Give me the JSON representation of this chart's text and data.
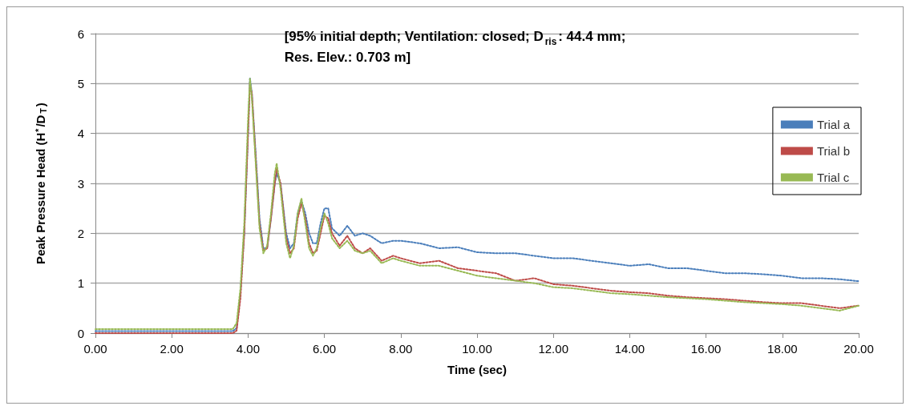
{
  "chart_data": {
    "type": "line",
    "title": "[95% initial depth; Ventilation: closed; D$_{ris}$: 44.4 mm;\nRes. Elev.: 0.703 m]",
    "xlabel": "Time (sec)",
    "ylabel": "Peak Pressure Head (H$^{*}$/D$_{T}$)",
    "x": [
      0,
      1,
      2,
      3,
      3.6,
      3.7,
      3.8,
      3.9,
      4.0,
      4.05,
      4.1,
      4.2,
      4.3,
      4.4,
      4.5,
      4.6,
      4.7,
      4.75,
      4.85,
      5.0,
      5.1,
      5.2,
      5.3,
      5.4,
      5.5,
      5.6,
      5.7,
      5.8,
      5.9,
      6.0,
      6.1,
      6.2,
      6.4,
      6.6,
      6.8,
      7.0,
      7.2,
      7.5,
      7.8,
      8,
      8.5,
      9,
      9.5,
      10,
      10.5,
      11,
      11.5,
      12,
      12.5,
      13,
      13.5,
      14,
      14.5,
      15,
      15.5,
      16,
      16.5,
      17,
      17.5,
      18,
      18.5,
      19,
      19.5,
      20
    ],
    "series": [
      {
        "name": "Trial a",
        "color": "#4a7ebb",
        "values": [
          0.04,
          0.04,
          0.04,
          0.04,
          0.04,
          0.1,
          0.8,
          2.0,
          4.0,
          5.1,
          4.8,
          3.6,
          2.3,
          1.7,
          1.7,
          2.3,
          3.0,
          3.2,
          3.0,
          2.0,
          1.7,
          1.8,
          2.4,
          2.65,
          2.4,
          2.0,
          1.8,
          1.8,
          2.2,
          2.5,
          2.5,
          2.1,
          1.95,
          2.15,
          1.95,
          2.0,
          1.95,
          1.8,
          1.85,
          1.85,
          1.8,
          1.7,
          1.72,
          1.62,
          1.6,
          1.6,
          1.55,
          1.5,
          1.5,
          1.45,
          1.4,
          1.35,
          1.38,
          1.3,
          1.3,
          1.25,
          1.2,
          1.2,
          1.18,
          1.15,
          1.1,
          1.1,
          1.08,
          1.04
        ]
      },
      {
        "name": "Trial b",
        "color": "#be4b48",
        "values": [
          0.0,
          0.0,
          0.0,
          0.0,
          0.0,
          0.05,
          0.7,
          2.0,
          4.0,
          5.0,
          4.8,
          3.5,
          2.2,
          1.65,
          1.7,
          2.3,
          3.0,
          3.3,
          3.0,
          1.9,
          1.6,
          1.7,
          2.3,
          2.6,
          2.3,
          1.8,
          1.6,
          1.65,
          2.0,
          2.35,
          2.3,
          2.0,
          1.75,
          1.95,
          1.7,
          1.6,
          1.7,
          1.45,
          1.55,
          1.5,
          1.4,
          1.45,
          1.3,
          1.25,
          1.2,
          1.05,
          1.1,
          0.98,
          0.95,
          0.9,
          0.85,
          0.82,
          0.8,
          0.75,
          0.72,
          0.7,
          0.68,
          0.65,
          0.62,
          0.6,
          0.6,
          0.55,
          0.5,
          0.55
        ]
      },
      {
        "name": "Trial c",
        "color": "#98b954",
        "values": [
          0.08,
          0.08,
          0.08,
          0.08,
          0.08,
          0.2,
          0.9,
          2.2,
          4.3,
          5.1,
          4.7,
          3.4,
          2.1,
          1.6,
          1.75,
          2.4,
          3.2,
          3.4,
          2.9,
          1.8,
          1.5,
          1.75,
          2.4,
          2.7,
          2.2,
          1.7,
          1.55,
          1.7,
          2.1,
          2.4,
          2.2,
          1.9,
          1.7,
          1.85,
          1.65,
          1.6,
          1.65,
          1.4,
          1.5,
          1.45,
          1.35,
          1.35,
          1.25,
          1.15,
          1.1,
          1.05,
          1.0,
          0.92,
          0.9,
          0.85,
          0.8,
          0.78,
          0.75,
          0.72,
          0.7,
          0.68,
          0.65,
          0.62,
          0.6,
          0.58,
          0.55,
          0.5,
          0.45,
          0.55
        ]
      }
    ],
    "xlim": [
      0,
      20
    ],
    "xticks": [
      {
        "value": 0,
        "label": "0.00"
      },
      {
        "value": 2,
        "label": "2.00"
      },
      {
        "value": 4,
        "label": "4.00"
      },
      {
        "value": 6,
        "label": "6.00"
      },
      {
        "value": 8,
        "label": "8.00"
      },
      {
        "value": 10,
        "label": "10.00"
      },
      {
        "value": 12,
        "label": "12.00"
      },
      {
        "value": 14,
        "label": "14.00"
      },
      {
        "value": 16,
        "label": "16.00"
      },
      {
        "value": 18,
        "label": "18.00"
      },
      {
        "value": 20,
        "label": "20.00"
      }
    ],
    "ylim": [
      0,
      6
    ],
    "yticks": [
      0,
      1,
      2,
      3,
      4,
      5,
      6
    ],
    "grid": "y",
    "legend": "right",
    "marker": "none",
    "line_style": "dotted"
  }
}
